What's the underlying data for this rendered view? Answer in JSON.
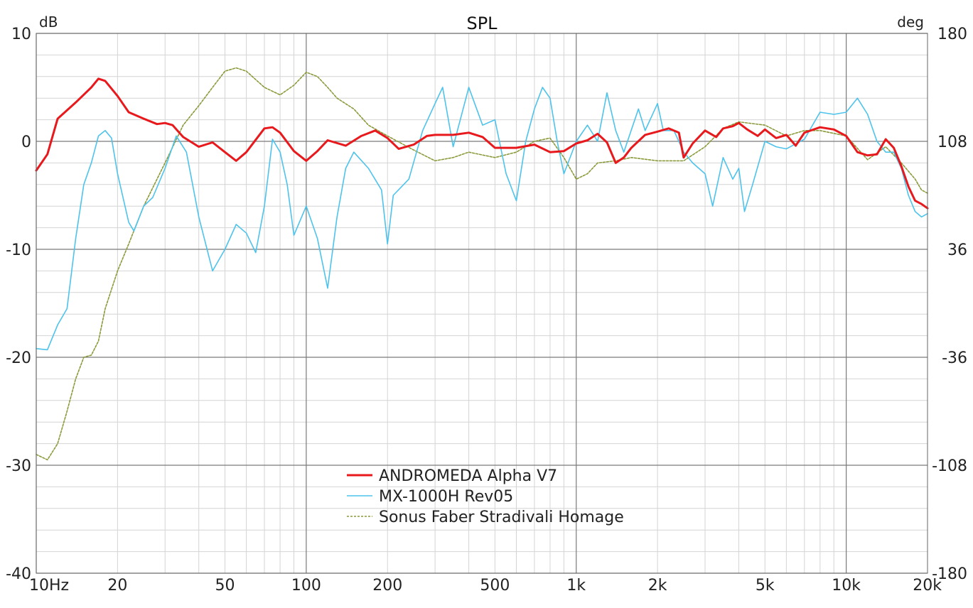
{
  "chart_data": {
    "type": "line",
    "title": "SPL",
    "ylabel_left": "dB",
    "ylabel_right": "deg",
    "xscale": "log",
    "xlim": [
      10,
      20000
    ],
    "ylim": [
      -40,
      10
    ],
    "y2lim": [
      -180,
      180
    ],
    "grid": true,
    "legend_position": "bottom-center",
    "x_ticks": [
      {
        "value": 10,
        "label": "10Hz"
      },
      {
        "value": 20,
        "label": "20"
      },
      {
        "value": 50,
        "label": "50"
      },
      {
        "value": 100,
        "label": "100"
      },
      {
        "value": 200,
        "label": "200"
      },
      {
        "value": 500,
        "label": "500"
      },
      {
        "value": 1000,
        "label": "1k"
      },
      {
        "value": 2000,
        "label": "2k"
      },
      {
        "value": 5000,
        "label": "5k"
      },
      {
        "value": 10000,
        "label": "10k"
      },
      {
        "value": 20000,
        "label": "20k"
      }
    ],
    "y_ticks": [
      {
        "value": 10,
        "label": "10"
      },
      {
        "value": 0,
        "label": "0"
      },
      {
        "value": -10,
        "label": "-10"
      },
      {
        "value": -20,
        "label": "-20"
      },
      {
        "value": -30,
        "label": "-30"
      },
      {
        "value": -40,
        "label": "-40"
      }
    ],
    "y2_ticks": [
      {
        "value": 180,
        "label": "180"
      },
      {
        "value": 108,
        "label": "108"
      },
      {
        "value": 36,
        "label": "36"
      },
      {
        "value": -36,
        "label": "-36"
      },
      {
        "value": -108,
        "label": "-108"
      },
      {
        "value": -180,
        "label": "-180"
      }
    ],
    "series": [
      {
        "name": "ANDROMEDA Alpha V7",
        "color": "#e8191c",
        "style": "solid",
        "points": [
          [
            10,
            -2.7
          ],
          [
            11,
            -1.2
          ],
          [
            12,
            2.1
          ],
          [
            14,
            3.6
          ],
          [
            16,
            5
          ],
          [
            17,
            5.8
          ],
          [
            18,
            5.6
          ],
          [
            20,
            4.2
          ],
          [
            22,
            2.7
          ],
          [
            25,
            2.1
          ],
          [
            28,
            1.6
          ],
          [
            30,
            1.7
          ],
          [
            32,
            1.5
          ],
          [
            35,
            0.4
          ],
          [
            40,
            -0.5
          ],
          [
            45,
            -0.1
          ],
          [
            50,
            -1
          ],
          [
            55,
            -1.8
          ],
          [
            60,
            -1
          ],
          [
            70,
            1.2
          ],
          [
            75,
            1.3
          ],
          [
            80,
            0.8
          ],
          [
            90,
            -0.9
          ],
          [
            100,
            -1.8
          ],
          [
            110,
            -0.9
          ],
          [
            120,
            0.1
          ],
          [
            140,
            -0.4
          ],
          [
            160,
            0.5
          ],
          [
            180,
            1
          ],
          [
            200,
            0.3
          ],
          [
            220,
            -0.7
          ],
          [
            250,
            -0.3
          ],
          [
            280,
            0.5
          ],
          [
            300,
            0.6
          ],
          [
            350,
            0.6
          ],
          [
            400,
            0.8
          ],
          [
            450,
            0.4
          ],
          [
            500,
            -0.6
          ],
          [
            600,
            -0.6
          ],
          [
            700,
            -0.3
          ],
          [
            800,
            -1
          ],
          [
            900,
            -0.9
          ],
          [
            1000,
            -0.2
          ],
          [
            1100,
            0.1
          ],
          [
            1200,
            0.7
          ],
          [
            1300,
            -0.1
          ],
          [
            1400,
            -2
          ],
          [
            1500,
            -1.5
          ],
          [
            1600,
            -0.6
          ],
          [
            1800,
            0.6
          ],
          [
            2000,
            0.9
          ],
          [
            2200,
            1.2
          ],
          [
            2400,
            0.8
          ],
          [
            2500,
            -1.5
          ],
          [
            2700,
            -0.2
          ],
          [
            3000,
            1
          ],
          [
            3300,
            0.4
          ],
          [
            3500,
            1.2
          ],
          [
            3800,
            1.4
          ],
          [
            4000,
            1.7
          ],
          [
            4300,
            1.1
          ],
          [
            4700,
            0.5
          ],
          [
            5000,
            1.1
          ],
          [
            5500,
            0.3
          ],
          [
            6000,
            0.6
          ],
          [
            6500,
            -0.4
          ],
          [
            7000,
            0.8
          ],
          [
            8000,
            1.3
          ],
          [
            9000,
            1.1
          ],
          [
            10000,
            0.5
          ],
          [
            11000,
            -1
          ],
          [
            12000,
            -1.3
          ],
          [
            13000,
            -1.2
          ],
          [
            14000,
            0.2
          ],
          [
            15000,
            -0.6
          ],
          [
            16000,
            -2.3
          ],
          [
            17000,
            -4.2
          ],
          [
            18000,
            -5.5
          ],
          [
            19000,
            -5.8
          ],
          [
            20000,
            -6.2
          ]
        ]
      },
      {
        "name": "MX-1000H Rev05",
        "color": "#4dc3ec",
        "style": "solid",
        "points": [
          [
            10,
            -19.2
          ],
          [
            11,
            -19.3
          ],
          [
            12,
            -17
          ],
          [
            13,
            -15.5
          ],
          [
            14,
            -9
          ],
          [
            15,
            -4
          ],
          [
            16,
            -2
          ],
          [
            17,
            0.5
          ],
          [
            18,
            1
          ],
          [
            19,
            0.3
          ],
          [
            20,
            -3
          ],
          [
            22,
            -7.5
          ],
          [
            23,
            -8.3
          ],
          [
            25,
            -6
          ],
          [
            27,
            -5.2
          ],
          [
            30,
            -2.5
          ],
          [
            33,
            0.5
          ],
          [
            36,
            -1
          ],
          [
            40,
            -7
          ],
          [
            45,
            -12
          ],
          [
            50,
            -10
          ],
          [
            55,
            -7.7
          ],
          [
            60,
            -8.5
          ],
          [
            65,
            -10.3
          ],
          [
            70,
            -6
          ],
          [
            75,
            0.2
          ],
          [
            80,
            -1
          ],
          [
            85,
            -4
          ],
          [
            90,
            -8.7
          ],
          [
            100,
            -6
          ],
          [
            110,
            -9
          ],
          [
            120,
            -13.6
          ],
          [
            130,
            -7
          ],
          [
            140,
            -2.5
          ],
          [
            150,
            -1
          ],
          [
            170,
            -2.5
          ],
          [
            190,
            -4.5
          ],
          [
            200,
            -9.5
          ],
          [
            210,
            -5
          ],
          [
            240,
            -3.5
          ],
          [
            270,
            1
          ],
          [
            300,
            3.5
          ],
          [
            320,
            5
          ],
          [
            350,
            -0.5
          ],
          [
            400,
            5
          ],
          [
            450,
            1.5
          ],
          [
            500,
            2
          ],
          [
            550,
            -3
          ],
          [
            600,
            -5.5
          ],
          [
            650,
            0
          ],
          [
            700,
            3
          ],
          [
            750,
            5
          ],
          [
            800,
            4
          ],
          [
            850,
            0
          ],
          [
            900,
            -3
          ],
          [
            1000,
            0
          ],
          [
            1100,
            1.5
          ],
          [
            1200,
            0
          ],
          [
            1300,
            4.5
          ],
          [
            1400,
            1
          ],
          [
            1500,
            -1
          ],
          [
            1700,
            3
          ],
          [
            1800,
            1
          ],
          [
            2000,
            3.5
          ],
          [
            2100,
            1
          ],
          [
            2300,
            1
          ],
          [
            2500,
            -1
          ],
          [
            2700,
            -2
          ],
          [
            3000,
            -3
          ],
          [
            3200,
            -6
          ],
          [
            3500,
            -1.5
          ],
          [
            3800,
            -3.5
          ],
          [
            4000,
            -2.5
          ],
          [
            4200,
            -6.5
          ],
          [
            4500,
            -4
          ],
          [
            5000,
            0
          ],
          [
            5500,
            -0.5
          ],
          [
            6000,
            -0.7
          ],
          [
            7000,
            0.2
          ],
          [
            8000,
            2.7
          ],
          [
            9000,
            2.5
          ],
          [
            10000,
            2.7
          ],
          [
            11000,
            4
          ],
          [
            12000,
            2.5
          ],
          [
            13000,
            0
          ],
          [
            14000,
            -1
          ],
          [
            15000,
            -1
          ],
          [
            16000,
            -2.5
          ],
          [
            17000,
            -5
          ],
          [
            18000,
            -6.5
          ],
          [
            19000,
            -7
          ],
          [
            20000,
            -6.7
          ]
        ]
      },
      {
        "name": "Sonus Faber Stradivali Homage",
        "color": "#8a9a3a",
        "style": "dashed",
        "points": [
          [
            10,
            -29
          ],
          [
            11,
            -29.5
          ],
          [
            12,
            -28
          ],
          [
            13,
            -25
          ],
          [
            14,
            -22
          ],
          [
            15,
            -20
          ],
          [
            16,
            -19.8
          ],
          [
            17,
            -18.5
          ],
          [
            18,
            -15.5
          ],
          [
            20,
            -12
          ],
          [
            22,
            -9.5
          ],
          [
            25,
            -6
          ],
          [
            28,
            -3.5
          ],
          [
            30,
            -2
          ],
          [
            35,
            1.5
          ],
          [
            40,
            3.3
          ],
          [
            45,
            5
          ],
          [
            50,
            6.5
          ],
          [
            55,
            6.8
          ],
          [
            60,
            6.5
          ],
          [
            70,
            5
          ],
          [
            80,
            4.3
          ],
          [
            90,
            5.2
          ],
          [
            100,
            6.4
          ],
          [
            110,
            6
          ],
          [
            120,
            5
          ],
          [
            130,
            4
          ],
          [
            150,
            3
          ],
          [
            170,
            1.5
          ],
          [
            200,
            0.5
          ],
          [
            250,
            -0.8
          ],
          [
            300,
            -1.8
          ],
          [
            350,
            -1.5
          ],
          [
            400,
            -1
          ],
          [
            500,
            -1.5
          ],
          [
            600,
            -1
          ],
          [
            700,
            0
          ],
          [
            800,
            0.3
          ],
          [
            900,
            -1.5
          ],
          [
            1000,
            -3.5
          ],
          [
            1100,
            -3
          ],
          [
            1200,
            -2
          ],
          [
            1400,
            -1.8
          ],
          [
            1600,
            -1.5
          ],
          [
            2000,
            -1.8
          ],
          [
            2500,
            -1.8
          ],
          [
            3000,
            -0.5
          ],
          [
            3500,
            1.2
          ],
          [
            4000,
            1.8
          ],
          [
            5000,
            1.5
          ],
          [
            6000,
            0.5
          ],
          [
            7000,
            1
          ],
          [
            8000,
            1
          ],
          [
            10000,
            0.5
          ],
          [
            12000,
            -1.7
          ],
          [
            14000,
            -0.5
          ],
          [
            16000,
            -2
          ],
          [
            18000,
            -3.5
          ],
          [
            19000,
            -4.5
          ],
          [
            20000,
            -4.8
          ]
        ]
      }
    ]
  }
}
